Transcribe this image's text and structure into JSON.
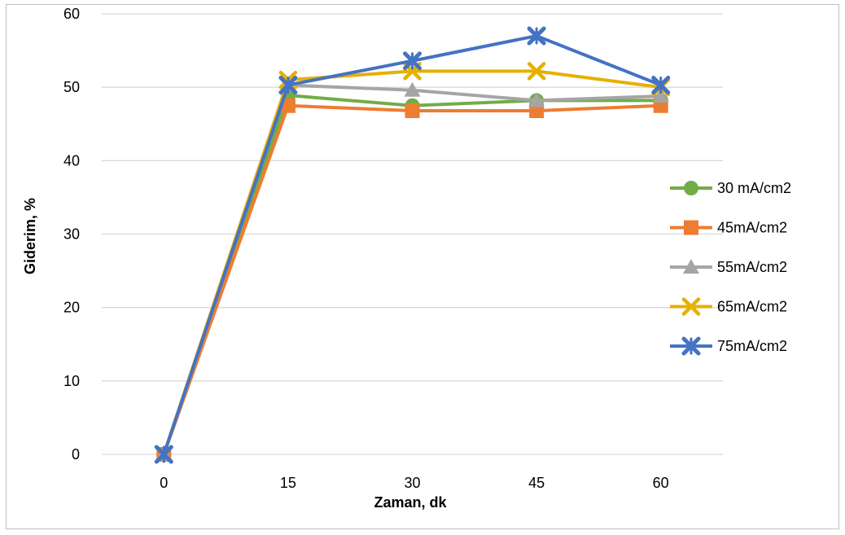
{
  "chart_data": {
    "type": "line",
    "xlabel": "Zaman, dk",
    "ylabel": "Giderim, %",
    "categories": [
      "0",
      "15",
      "30",
      "45",
      "60"
    ],
    "ylim": [
      0,
      60
    ],
    "yticks": [
      0,
      10,
      20,
      30,
      40,
      50,
      60
    ],
    "grid": true,
    "legend_position": "right",
    "series": [
      {
        "name": "30 mA/cm2",
        "values": [
          0,
          48.9,
          47.5,
          48.2,
          48.2
        ],
        "color": "#70ad47",
        "marker": "circle"
      },
      {
        "name": "45mA/cm2",
        "values": [
          0,
          47.5,
          46.8,
          46.8,
          47.5
        ],
        "color": "#ed7d31",
        "marker": "square"
      },
      {
        "name": "55mA/cm2",
        "values": [
          0,
          50.3,
          49.6,
          48.2,
          48.8
        ],
        "color": "#a5a5a5",
        "marker": "triangle"
      },
      {
        "name": "65mA/cm2",
        "values": [
          0,
          51.0,
          52.2,
          52.2,
          50.0
        ],
        "color": "#e6b000",
        "marker": "x"
      },
      {
        "name": "75mA/cm2",
        "values": [
          0,
          50.3,
          53.6,
          57.0,
          50.3
        ],
        "color": "#4472c4",
        "marker": "star"
      }
    ]
  }
}
